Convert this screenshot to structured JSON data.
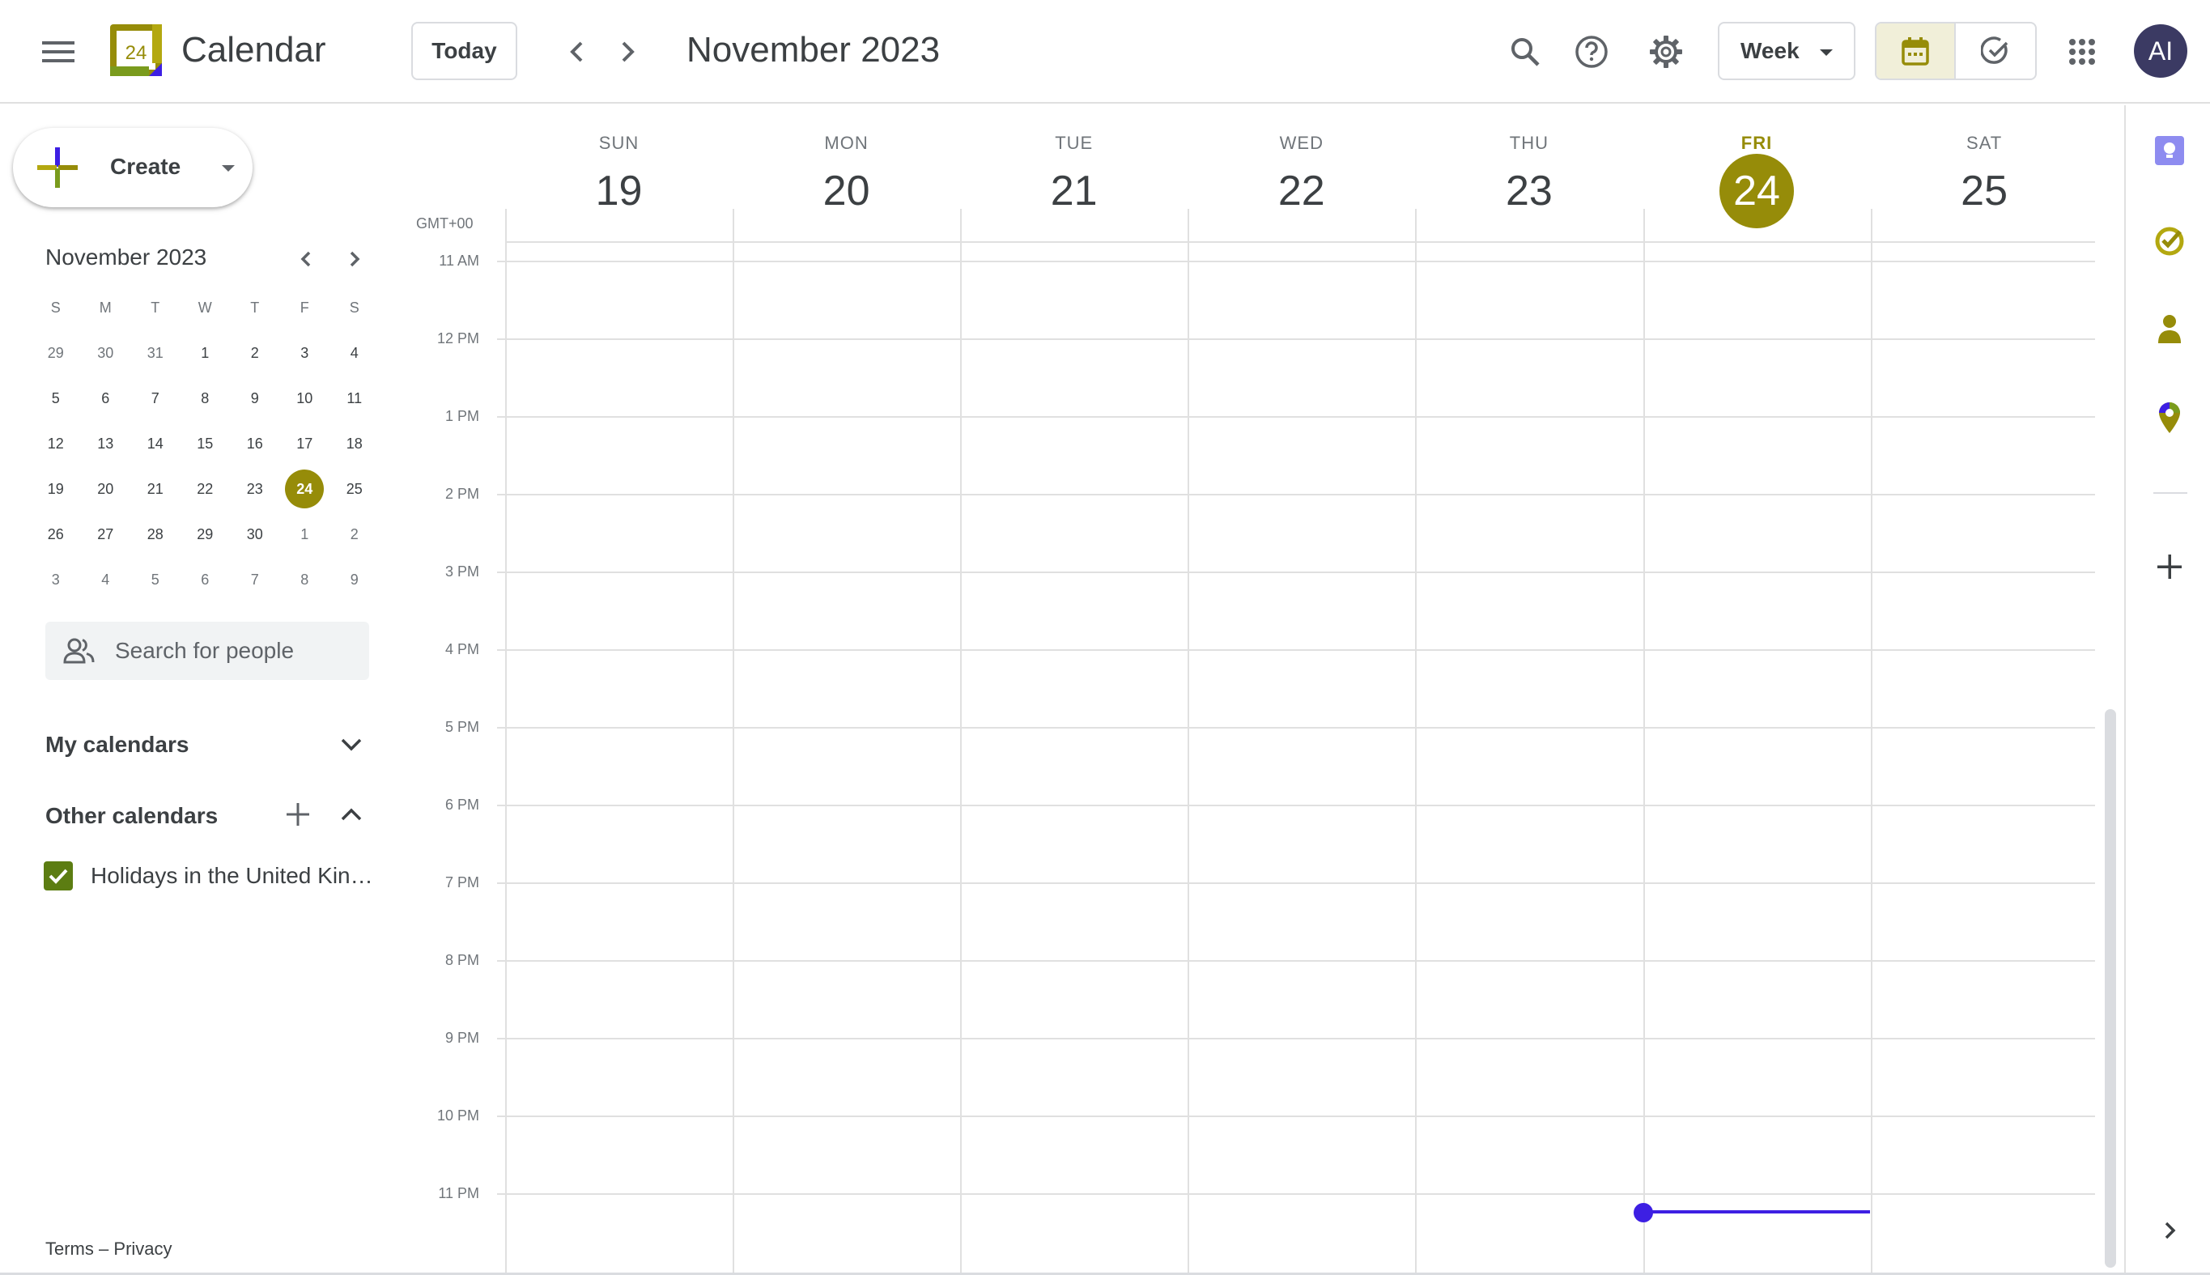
{
  "header": {
    "app_title": "Calendar",
    "logo_day": "24",
    "today_label": "Today",
    "current_period": "November 2023",
    "view_label": "Week",
    "avatar_initials": "AI"
  },
  "sidebar": {
    "create_label": "Create",
    "mini_calendar": {
      "title": "November 2023",
      "weekdays": [
        "S",
        "M",
        "T",
        "W",
        "T",
        "F",
        "S"
      ],
      "weeks": [
        [
          "29",
          "30",
          "31",
          "1",
          "2",
          "3",
          "4"
        ],
        [
          "5",
          "6",
          "7",
          "8",
          "9",
          "10",
          "11"
        ],
        [
          "12",
          "13",
          "14",
          "15",
          "16",
          "17",
          "18"
        ],
        [
          "19",
          "20",
          "21",
          "22",
          "23",
          "24",
          "25"
        ],
        [
          "26",
          "27",
          "28",
          "29",
          "30",
          "1",
          "2"
        ],
        [
          "3",
          "4",
          "5",
          "6",
          "7",
          "8",
          "9"
        ]
      ],
      "today": "24"
    },
    "people_search_placeholder": "Search for people",
    "my_calendars_title": "My calendars",
    "other_calendars_title": "Other calendars",
    "other_calendars": [
      {
        "label": "Holidays in the United Kingdom",
        "checked": true,
        "color": "#5c7d12"
      }
    ],
    "footer": {
      "terms": "Terms",
      "separator": "–",
      "privacy": "Privacy"
    }
  },
  "week": {
    "timezone_label": "GMT+00",
    "days": [
      {
        "dow": "SUN",
        "num": "19",
        "today": false
      },
      {
        "dow": "MON",
        "num": "20",
        "today": false
      },
      {
        "dow": "TUE",
        "num": "21",
        "today": false
      },
      {
        "dow": "WED",
        "num": "22",
        "today": false
      },
      {
        "dow": "THU",
        "num": "23",
        "today": false
      },
      {
        "dow": "FRI",
        "num": "24",
        "today": true
      },
      {
        "dow": "SAT",
        "num": "25",
        "today": false
      }
    ],
    "hours": [
      "11 AM",
      "12 PM",
      "1 PM",
      "2 PM",
      "3 PM",
      "4 PM",
      "5 PM",
      "6 PM",
      "7 PM",
      "8 PM",
      "9 PM",
      "10 PM",
      "11 PM"
    ]
  },
  "colors": {
    "accent": "#968c09",
    "now_indicator": "#3d1fe3",
    "avatar_bg": "#3b3a63"
  },
  "side_panel": {
    "icons": [
      "keep-icon",
      "tasks-icon",
      "contacts-icon",
      "maps-icon",
      "add-icon",
      "expand-chevron-icon"
    ]
  }
}
